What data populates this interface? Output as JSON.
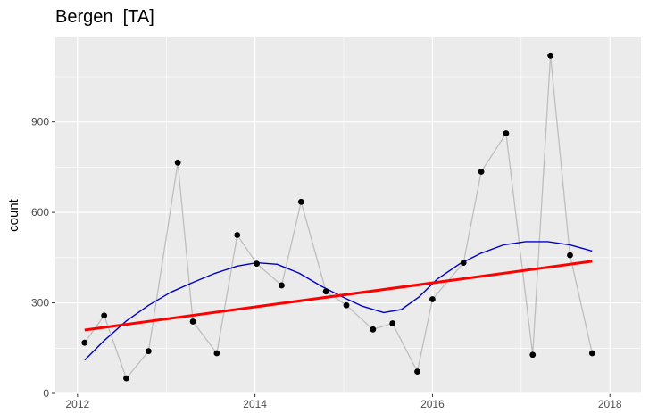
{
  "chart_data": {
    "type": "line",
    "title": "Bergen  [TA]",
    "xlabel": "",
    "ylabel": "count",
    "xlim": [
      2011.75,
      2018.35
    ],
    "ylim": [
      0,
      1180
    ],
    "x_ticks": [
      2012,
      2014,
      2016,
      2018
    ],
    "y_ticks": [
      0,
      300,
      600,
      900
    ],
    "grid": true,
    "colors": {
      "panel": "#ebebeb",
      "grid": "#ffffff",
      "observed": "#bebebe",
      "points": "#000000",
      "trend": "#ff0000",
      "smooth": "#0000cc"
    },
    "series": [
      {
        "kind": "observed",
        "x": [
          2012.08,
          2012.3,
          2012.55,
          2012.8,
          2013.13,
          2013.3,
          2013.57,
          2013.8,
          2014.02,
          2014.3,
          2014.52,
          2014.8,
          2015.03,
          2015.33,
          2015.55,
          2015.83,
          2016.0,
          2016.35,
          2016.55,
          2016.83,
          2017.13,
          2017.33,
          2017.55,
          2017.8
        ],
        "y": [
          168,
          258,
          50,
          140,
          765,
          238,
          133,
          525,
          430,
          358,
          635,
          338,
          292,
          212,
          232,
          72,
          312,
          433,
          735,
          862,
          128,
          1120,
          458,
          133
        ]
      },
      {
        "kind": "trend",
        "x": [
          2012.08,
          2017.8
        ],
        "y": [
          210,
          438
        ]
      },
      {
        "kind": "smooth",
        "x": [
          2012.08,
          2012.3,
          2012.55,
          2012.8,
          2013.05,
          2013.3,
          2013.55,
          2013.8,
          2014.02,
          2014.25,
          2014.5,
          2014.75,
          2015.0,
          2015.2,
          2015.45,
          2015.65,
          2015.85,
          2016.05,
          2016.3,
          2016.55,
          2016.8,
          2017.05,
          2017.3,
          2017.55,
          2017.8
        ],
        "y": [
          110,
          175,
          240,
          292,
          335,
          368,
          398,
          422,
          433,
          428,
          398,
          355,
          318,
          290,
          268,
          278,
          320,
          378,
          428,
          465,
          492,
          503,
          503,
          492,
          472
        ]
      }
    ]
  }
}
